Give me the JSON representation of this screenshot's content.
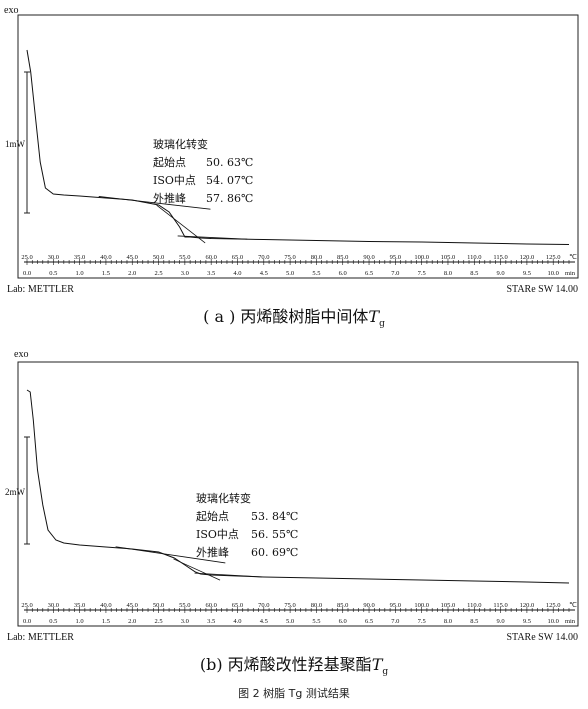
{
  "chart_data": [
    {
      "type": "line",
      "panel": "a",
      "y_label": "exo",
      "scale_bar_label": "1mW",
      "x_temp_unit": "℃",
      "x_temp_ticks": [
        "25.0",
        "30.0",
        "35.0",
        "40.0",
        "45.0",
        "50.0",
        "55.0",
        "60.0",
        "65.0",
        "70.0",
        "75.0",
        "80.0",
        "85.0",
        "90.0",
        "95.0",
        "100.0",
        "105.0",
        "110.0",
        "115.0",
        "120.0",
        "125.0"
      ],
      "x_time_unit": "min",
      "x_time_ticks": [
        "0.0",
        "0.5",
        "1.0",
        "1.5",
        "2.0",
        "2.5",
        "3.0",
        "3.5",
        "4.0",
        "4.5",
        "5.0",
        "5.5",
        "6.0",
        "6.5",
        "7.0",
        "7.5",
        "8.0",
        "8.5",
        "9.0",
        "9.5",
        "10.0"
      ],
      "x_range": [
        25,
        128
      ],
      "series": [
        {
          "x": [
            25,
            25.7,
            26.5,
            27.5,
            28.5,
            30,
            32,
            35,
            40,
            45,
            50,
            52,
            54,
            55,
            56,
            58,
            60,
            65,
            70,
            80,
            90,
            100,
            110,
            120,
            128
          ],
          "y": [
            -0.92,
            -0.7,
            -0.3,
            0.2,
            0.46,
            0.52,
            0.53,
            0.54,
            0.56,
            0.58,
            0.63,
            0.7,
            0.85,
            0.95,
            0.95,
            0.96,
            0.965,
            0.97,
            0.975,
            0.985,
            0.995,
            1.0,
            1.01,
            1.02,
            1.025
          ]
        }
      ],
      "annotation": {
        "title": "玻璃化转变",
        "rows": [
          {
            "label": "起始点",
            "value": "50. 63℃"
          },
          {
            "label": "ISO中点",
            "value": "54. 07℃"
          },
          {
            "label": "外推峰",
            "value": "57. 86℃"
          }
        ]
      },
      "lab": "Lab: METTLER",
      "software": "STARe  SW  14.00"
    },
    {
      "type": "line",
      "panel": "b",
      "y_label": "exo",
      "scale_bar_label": "2mW",
      "x_temp_unit": "℃",
      "x_temp_ticks": [
        "25.0",
        "30.0",
        "35.0",
        "40.0",
        "45.0",
        "50.0",
        "55.0",
        "60.0",
        "65.0",
        "70.0",
        "75.0",
        "80.0",
        "85.0",
        "90.0",
        "95.0",
        "100.0",
        "105.0",
        "110.0",
        "115.0",
        "120.0",
        "125.0"
      ],
      "x_time_unit": "min",
      "x_time_ticks": [
        "0.0",
        "0.5",
        "1.0",
        "1.5",
        "2.0",
        "2.5",
        "3.0",
        "3.5",
        "4.0",
        "4.5",
        "5.0",
        "5.5",
        "6.0",
        "6.5",
        "7.0",
        "7.5",
        "8.0",
        "8.5",
        "9.0",
        "9.5",
        "10.0"
      ],
      "x_range": [
        25,
        128
      ],
      "series": [
        {
          "x": [
            25,
            25.6,
            26.2,
            27,
            28,
            29,
            30.5,
            32,
            35,
            40,
            45,
            50,
            53,
            55,
            57,
            58,
            60,
            65,
            70,
            80,
            90,
            100,
            110,
            120,
            128
          ],
          "y": [
            -1.0,
            -0.98,
            -0.7,
            -0.2,
            0.15,
            0.4,
            0.5,
            0.53,
            0.55,
            0.57,
            0.59,
            0.62,
            0.68,
            0.75,
            0.82,
            0.84,
            0.85,
            0.86,
            0.87,
            0.88,
            0.89,
            0.9,
            0.91,
            0.92,
            0.93
          ]
        }
      ],
      "annotation": {
        "title": "玻璃化转变",
        "rows": [
          {
            "label": "起始点",
            "value": "53. 84℃"
          },
          {
            "label": "ISO中点",
            "value": "56. 55℃"
          },
          {
            "label": "外推峰",
            "value": "60. 69℃"
          }
        ]
      },
      "lab": "Lab: METTLER",
      "software": "STARe  SW  14.00"
    }
  ],
  "captions": {
    "a_prefix": "( a )  丙烯酸树脂中间体",
    "a_symbol": "T",
    "a_sub": "g",
    "b_prefix": "(b)    丙烯酸改性羟基聚酯",
    "b_symbol": "T",
    "b_sub": "g",
    "figure": "图 2  树脂 Tg 测试结果"
  }
}
